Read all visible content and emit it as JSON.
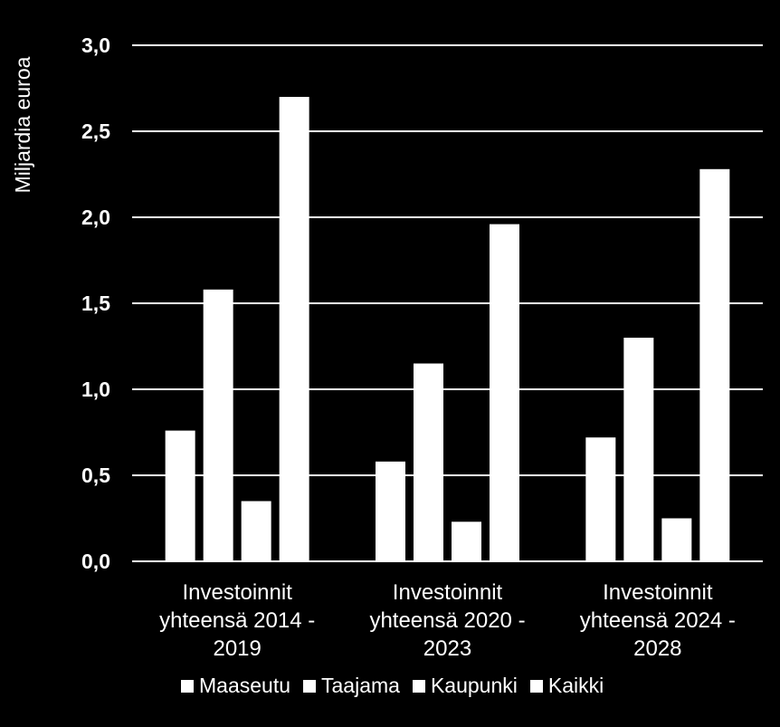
{
  "chart_data": {
    "type": "bar",
    "ylabel": "Miljardia euroa",
    "ylim": [
      0,
      3.0
    ],
    "yticks": [
      "0,0",
      "0,5",
      "1,0",
      "1,5",
      "2,0",
      "2,5",
      "3,0"
    ],
    "grid": true,
    "legend_position": "bottom",
    "colors": {
      "background": "#000000",
      "bars": "#ffffff",
      "text": "#ffffff",
      "grid": "#ffffff"
    },
    "categories": [
      [
        "Investoinnit",
        "yhteensä 2014 -",
        "2019"
      ],
      [
        "Investoinnit",
        "yhteensä 2020 -",
        "2023"
      ],
      [
        "Investoinnit",
        "yhteensä 2024 -",
        "2028"
      ]
    ],
    "series": [
      {
        "name": "Maaseutu",
        "values": [
          0.76,
          0.58,
          0.72
        ]
      },
      {
        "name": "Taajama",
        "values": [
          1.58,
          1.15,
          1.3
        ]
      },
      {
        "name": "Kaupunki",
        "values": [
          0.35,
          0.23,
          0.25
        ]
      },
      {
        "name": "Kaikki",
        "values": [
          2.7,
          1.96,
          2.28
        ]
      }
    ]
  }
}
